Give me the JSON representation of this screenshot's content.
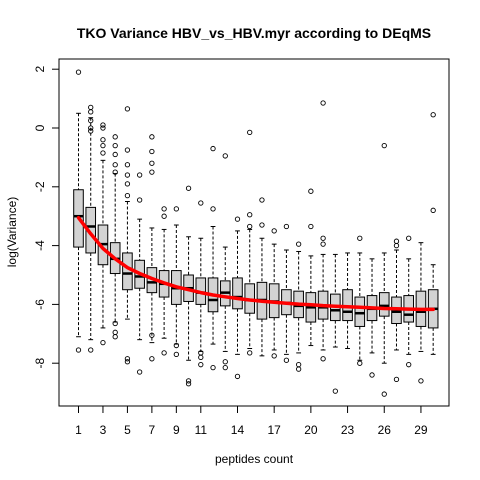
{
  "chart_data": {
    "type": "boxplot",
    "title": "TKO Variance HBV_vs_HBV.myr according to DEqMS",
    "xlabel": "peptides count",
    "ylabel": "log(Variance)",
    "x_tick_labels": [
      "1",
      "3",
      "5",
      "7",
      "9",
      "11",
      "14",
      "17",
      "20",
      "23",
      "26",
      "29"
    ],
    "y_ticks": [
      2,
      0,
      -2,
      -4,
      -6,
      -8
    ],
    "ylim": [
      -9.2,
      2.3
    ],
    "box_fill": "#d3d3d3",
    "trend_color": "#ff0000",
    "categories": [
      1,
      2,
      3,
      4,
      5,
      6,
      7,
      8,
      9,
      10,
      11,
      12,
      13,
      14,
      15,
      16,
      17,
      18,
      19,
      20,
      21,
      22,
      23,
      24,
      25,
      26,
      27,
      28,
      29,
      30
    ],
    "boxes": [
      {
        "lo": -7.1,
        "q1": -4.05,
        "med": -3.0,
        "q3": -2.1,
        "hi": 0.5,
        "out": [
          1.9,
          -7.55
        ]
      },
      {
        "lo": -7.2,
        "q1": -4.25,
        "med": -3.35,
        "q3": -2.7,
        "hi": 0.35,
        "out": [
          0.7,
          0.55,
          0.25,
          0.0,
          -0.1,
          -7.55
        ]
      },
      {
        "lo": -6.8,
        "q1": -4.65,
        "med": -3.95,
        "q3": -3.3,
        "hi": -1.1,
        "out": [
          0.1,
          0.0,
          -0.4,
          -0.6,
          -0.85,
          -7.3
        ]
      },
      {
        "lo": -6.6,
        "q1": -4.95,
        "med": -4.45,
        "q3": -3.9,
        "hi": -1.55,
        "out": [
          -0.3,
          -0.6,
          -0.9,
          -1.25,
          -1.5,
          -6.65,
          -6.95,
          -7.1
        ]
      },
      {
        "lo": -6.5,
        "q1": -5.5,
        "med": -4.95,
        "q3": -4.25,
        "hi": -2.5,
        "out": [
          0.65,
          -0.75,
          -1.25,
          -1.6,
          -1.9,
          -2.3,
          -7.85,
          -7.95
        ]
      },
      {
        "lo": -7.2,
        "q1": -5.45,
        "med": -5.05,
        "q3": -4.5,
        "hi": -3.1,
        "out": [
          -1.6,
          -2.45,
          -8.3
        ]
      },
      {
        "lo": -7.3,
        "q1": -5.6,
        "med": -5.25,
        "q3": -4.75,
        "hi": -3.4,
        "out": [
          -0.3,
          -0.8,
          -1.2,
          -1.5,
          -7.05,
          -7.85
        ]
      },
      {
        "lo": -7.15,
        "q1": -5.75,
        "med": -5.3,
        "q3": -4.85,
        "hi": -3.45,
        "out": [
          -3.0,
          -2.75,
          -7.65
        ]
      },
      {
        "lo": -7.35,
        "q1": -6.0,
        "med": -5.45,
        "q3": -4.85,
        "hi": -3.3,
        "out": [
          -2.75,
          -7.4,
          -7.7
        ]
      },
      {
        "lo": -7.9,
        "q1": -5.9,
        "med": -5.45,
        "q3": -5.0,
        "hi": -3.7,
        "out": [
          -2.05,
          -8.6,
          -8.7
        ]
      },
      {
        "lo": -7.6,
        "q1": -6.0,
        "med": -5.6,
        "q3": -5.1,
        "hi": -3.75,
        "out": [
          -2.55,
          -7.65,
          -7.8,
          -8.05
        ]
      },
      {
        "lo": -7.35,
        "q1": -6.25,
        "med": -5.85,
        "q3": -5.1,
        "hi": -3.35,
        "out": [
          -2.75,
          -0.7,
          -8.15
        ]
      },
      {
        "lo": -7.6,
        "q1": -6.05,
        "med": -5.6,
        "q3": -5.2,
        "hi": -4.05,
        "out": [
          -0.95,
          -7.95,
          -8.15
        ]
      },
      {
        "lo": -7.7,
        "q1": -6.15,
        "med": -5.75,
        "q3": -5.1,
        "hi": -3.5,
        "out": [
          -3.1,
          -8.45
        ]
      },
      {
        "lo": -7.5,
        "q1": -6.3,
        "med": -5.85,
        "q3": -5.3,
        "hi": -3.45,
        "out": [
          -0.15,
          -2.95,
          -3.35,
          -7.65
        ]
      },
      {
        "lo": -7.75,
        "q1": -6.5,
        "med": -5.85,
        "q3": -5.25,
        "hi": -3.75,
        "out": [
          -2.45,
          -3.3
        ]
      },
      {
        "lo": -7.55,
        "q1": -6.45,
        "med": -5.9,
        "q3": -5.3,
        "hi": -3.95,
        "out": [
          -3.5,
          -7.75
        ]
      },
      {
        "lo": -7.7,
        "q1": -6.35,
        "med": -5.95,
        "q3": -5.5,
        "hi": -4.15,
        "out": [
          -3.35,
          -7.9
        ]
      },
      {
        "lo": -7.65,
        "q1": -6.45,
        "med": -6.05,
        "q3": -5.55,
        "hi": -4.2,
        "out": [
          -3.95,
          -8.05,
          -8.2
        ]
      },
      {
        "lo": -7.4,
        "q1": -6.6,
        "med": -6.1,
        "q3": -5.6,
        "hi": -4.35,
        "out": [
          -2.15,
          -3.35
        ]
      },
      {
        "lo": -7.55,
        "q1": -6.5,
        "med": -6.1,
        "q3": -5.55,
        "hi": -4.3,
        "out": [
          0.85,
          -3.75,
          -3.95,
          -7.85
        ]
      },
      {
        "lo": -7.45,
        "q1": -6.55,
        "med": -6.2,
        "q3": -5.65,
        "hi": -4.3,
        "out": [
          -8.95
        ]
      },
      {
        "lo": -7.5,
        "q1": -6.55,
        "med": -6.25,
        "q3": -5.5,
        "hi": -4.25,
        "out": []
      },
      {
        "lo": -7.9,
        "q1": -6.75,
        "med": -6.3,
        "q3": -5.75,
        "hi": -4.25,
        "out": [
          -3.75,
          -8.0
        ]
      },
      {
        "lo": -7.65,
        "q1": -6.55,
        "med": -6.15,
        "q3": -5.7,
        "hi": -4.45,
        "out": [
          -8.4
        ]
      },
      {
        "lo": -8.0,
        "q1": -6.4,
        "med": -6.05,
        "q3": -5.6,
        "hi": -4.25,
        "out": [
          -0.6,
          -9.05
        ]
      },
      {
        "lo": -7.55,
        "q1": -6.65,
        "med": -6.25,
        "q3": -5.75,
        "hi": -4.15,
        "out": [
          -3.85,
          -4.0,
          -8.55
        ]
      },
      {
        "lo": -7.7,
        "q1": -6.6,
        "med": -6.35,
        "q3": -5.7,
        "hi": -4.45,
        "out": [
          -3.75,
          -8.05
        ]
      },
      {
        "lo": -7.6,
        "q1": -6.75,
        "med": -6.25,
        "q3": -5.55,
        "hi": -3.9,
        "out": [
          -8.6
        ]
      },
      {
        "lo": -7.7,
        "q1": -6.8,
        "med": -6.15,
        "q3": -5.5,
        "hi": -4.65,
        "out": [
          0.45,
          -2.8
        ]
      }
    ],
    "trend": [
      -3.05,
      -3.6,
      -4.1,
      -4.45,
      -4.75,
      -4.95,
      -5.12,
      -5.27,
      -5.4,
      -5.5,
      -5.6,
      -5.68,
      -5.74,
      -5.8,
      -5.85,
      -5.89,
      -5.93,
      -5.96,
      -5.99,
      -6.01,
      -6.04,
      -6.06,
      -6.08,
      -6.1,
      -6.12,
      -6.14,
      -6.15,
      -6.16,
      -6.17,
      -6.17
    ]
  }
}
